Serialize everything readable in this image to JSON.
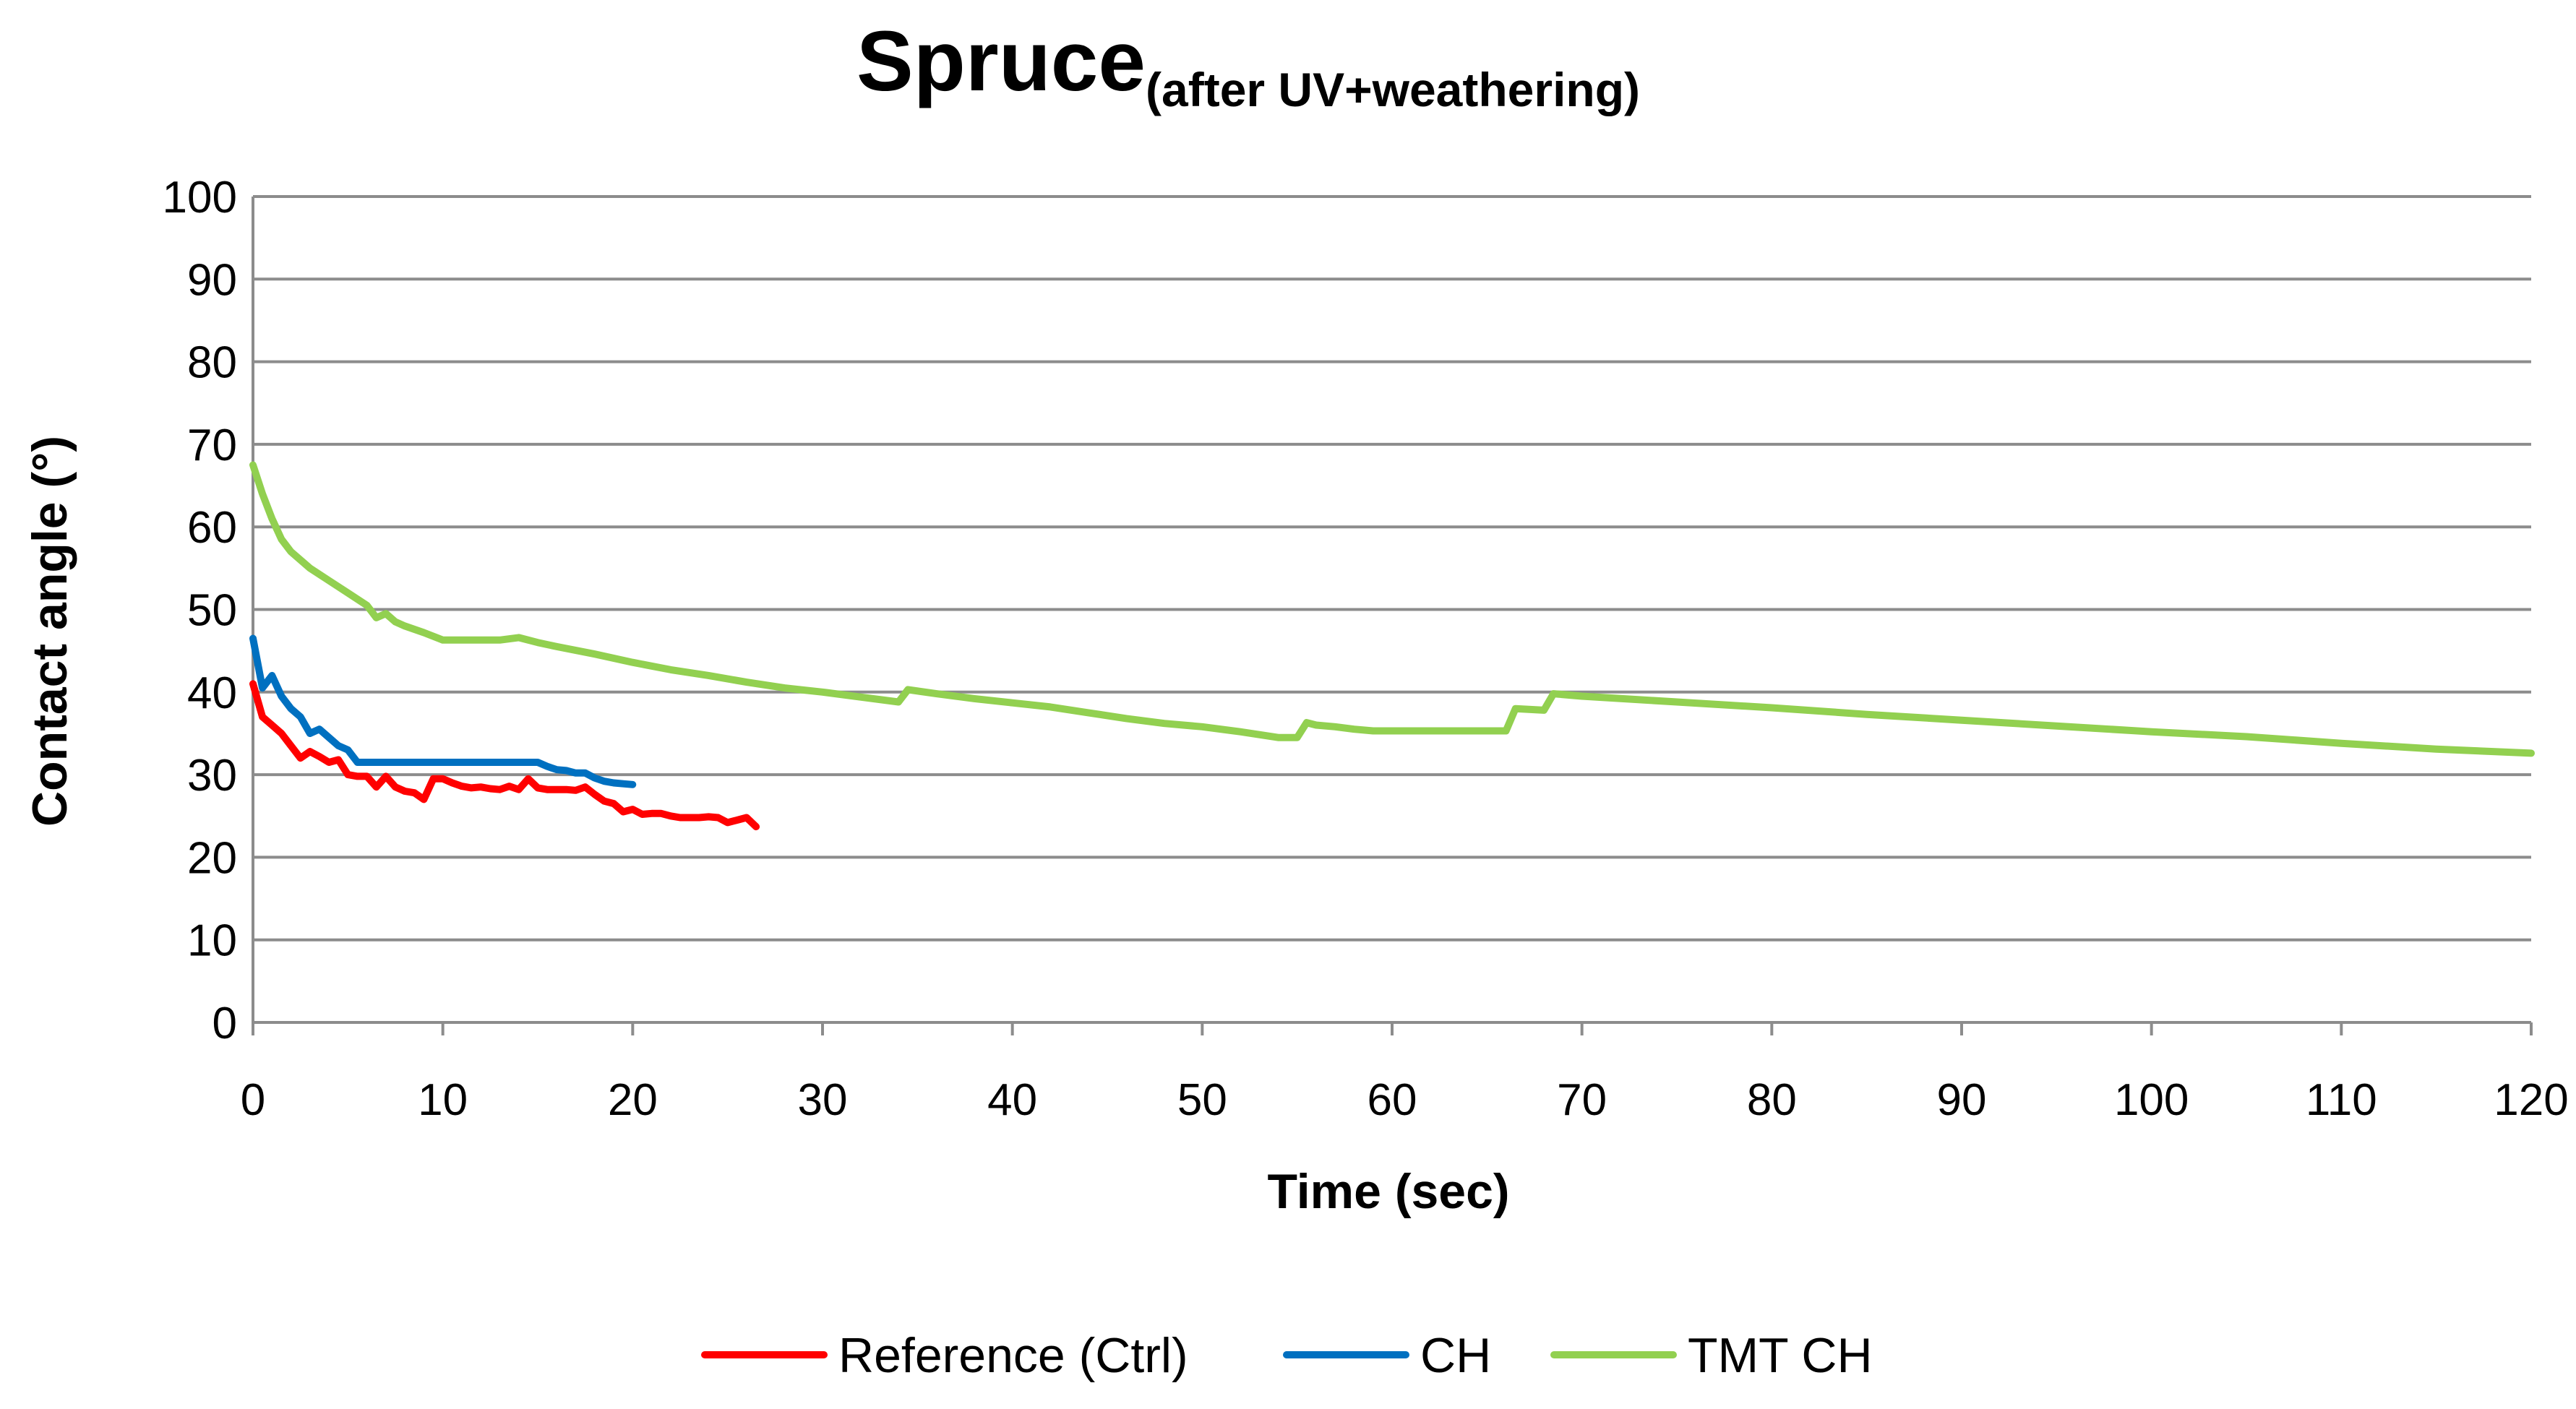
{
  "chart_data": {
    "type": "line",
    "title": "Spruce",
    "subtitle": "(after UV+weathering)",
    "xlabel": "Time (sec)",
    "ylabel": "Contact angle (°)",
    "xlim": [
      0,
      120
    ],
    "ylim": [
      0,
      100
    ],
    "x_ticks": [
      0,
      10,
      20,
      30,
      40,
      50,
      60,
      70,
      80,
      90,
      100,
      110,
      120
    ],
    "y_ticks": [
      0,
      10,
      20,
      30,
      40,
      50,
      60,
      70,
      80,
      90,
      100
    ],
    "grid": true,
    "legend_position": "bottom",
    "series": [
      {
        "name": "Reference (Ctrl)",
        "color": "#ff0000",
        "x": [
          0,
          0.5,
          1,
          1.5,
          2,
          2.5,
          3,
          3.5,
          4,
          4.5,
          5,
          5.5,
          6,
          6.5,
          7,
          7.5,
          8,
          8.5,
          9,
          9.5,
          10,
          10.5,
          11,
          11.5,
          12,
          12.5,
          13,
          13.5,
          14,
          14.5,
          15,
          15.5,
          16,
          16.5,
          17,
          17.5,
          18,
          18.5,
          19,
          19.5,
          20,
          20.5,
          21,
          21.5,
          22,
          22.5,
          23,
          23.5,
          24,
          24.5,
          25,
          25.5,
          26,
          26.5
        ],
        "y": [
          41,
          37,
          36,
          35,
          33.5,
          32,
          32.8,
          32.2,
          31.5,
          31.8,
          30,
          29.8,
          29.8,
          28.5,
          29.8,
          28.5,
          28,
          27.8,
          27,
          29.5,
          29.5,
          29,
          28.6,
          28.4,
          28.5,
          28.3,
          28.2,
          28.6,
          28.2,
          29.5,
          28.4,
          28.2,
          28.2,
          28.2,
          28.1,
          28.5,
          27.6,
          26.8,
          26.5,
          25.5,
          25.8,
          25.2,
          25.3,
          25.3,
          25,
          24.8,
          24.8,
          24.8,
          24.9,
          24.8,
          24.2,
          24.5,
          24.8,
          23.7
        ]
      },
      {
        "name": "CH",
        "color": "#0070c0",
        "x": [
          0,
          0.5,
          1,
          1.5,
          2,
          2.5,
          3,
          3.5,
          4,
          4.5,
          5,
          5.5,
          6,
          7,
          8,
          9,
          10,
          11,
          12,
          13,
          14,
          15,
          15.5,
          16,
          16.5,
          17,
          17.5,
          18,
          18.5,
          19,
          19.5,
          20
        ],
        "y": [
          46.5,
          40.5,
          42,
          39.5,
          38,
          37,
          35,
          35.5,
          34.5,
          33.5,
          33,
          31.5,
          31.5,
          31.5,
          31.5,
          31.5,
          31.5,
          31.5,
          31.5,
          31.5,
          31.5,
          31.5,
          31,
          30.6,
          30.5,
          30.2,
          30.2,
          29.6,
          29.2,
          29,
          28.9,
          28.8
        ]
      },
      {
        "name": "TMT CH",
        "color": "#92d050",
        "x": [
          0,
          0.5,
          1,
          1.5,
          2,
          3,
          4,
          5,
          6,
          6.5,
          7,
          7.5,
          8,
          9,
          10,
          11,
          12,
          13,
          14,
          15,
          16,
          18,
          20,
          22,
          24,
          26,
          28,
          30,
          32,
          34,
          34.5,
          36,
          38,
          40,
          42,
          44,
          46,
          48,
          50,
          52,
          54,
          55,
          55.5,
          56,
          57,
          58,
          59,
          60,
          62,
          64,
          66,
          66.5,
          68,
          68.5,
          70,
          75,
          80,
          85,
          90,
          95,
          100,
          105,
          110,
          115,
          120
        ],
        "y": [
          67.5,
          64,
          61,
          58.5,
          57,
          55,
          53.5,
          52,
          50.5,
          49,
          49.5,
          48.5,
          48,
          47.2,
          46.3,
          46.3,
          46.3,
          46.3,
          46.6,
          46,
          45.5,
          44.6,
          43.6,
          42.7,
          42,
          41.2,
          40.5,
          40,
          39.4,
          38.8,
          40.3,
          39.8,
          39.2,
          38.7,
          38.2,
          37.5,
          36.8,
          36.2,
          35.8,
          35.2,
          34.5,
          34.5,
          36.3,
          36,
          35.8,
          35.5,
          35.3,
          35.3,
          35.3,
          35.3,
          35.3,
          38,
          37.8,
          39.8,
          39.5,
          38.8,
          38.1,
          37.3,
          36.6,
          35.9,
          35.2,
          34.6,
          33.8,
          33.1,
          32.6
        ]
      }
    ]
  }
}
